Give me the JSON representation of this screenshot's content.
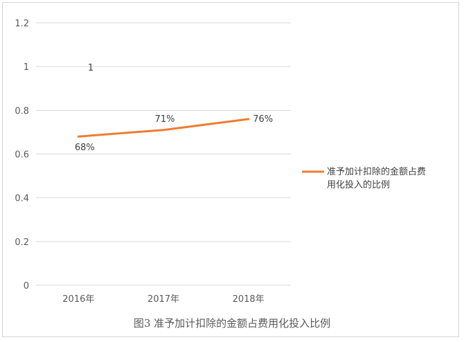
{
  "chart_data": {
    "type": "line",
    "categories": [
      "2016年",
      "2017年",
      "2018年"
    ],
    "series": [
      {
        "name": "准予加计扣除的金额占费用化投入的比例",
        "values": [
          0.68,
          0.71,
          0.76
        ],
        "color": "#ed7d31"
      }
    ],
    "data_labels": [
      "68%",
      "71%",
      "76%"
    ],
    "annotations": [
      {
        "text": "1"
      }
    ],
    "y_ticks": [
      "0",
      "0.2",
      "0.4",
      "0.6",
      "0.8",
      "1",
      "1.2"
    ],
    "ylim": [
      0,
      1.2
    ],
    "grid": true,
    "legend_placement": "right",
    "legend_lines": [
      "准予加计扣除的金额占费",
      "用化投入的比例"
    ],
    "caption": "图3   准予加计扣除的金额占费用化投入比例"
  }
}
